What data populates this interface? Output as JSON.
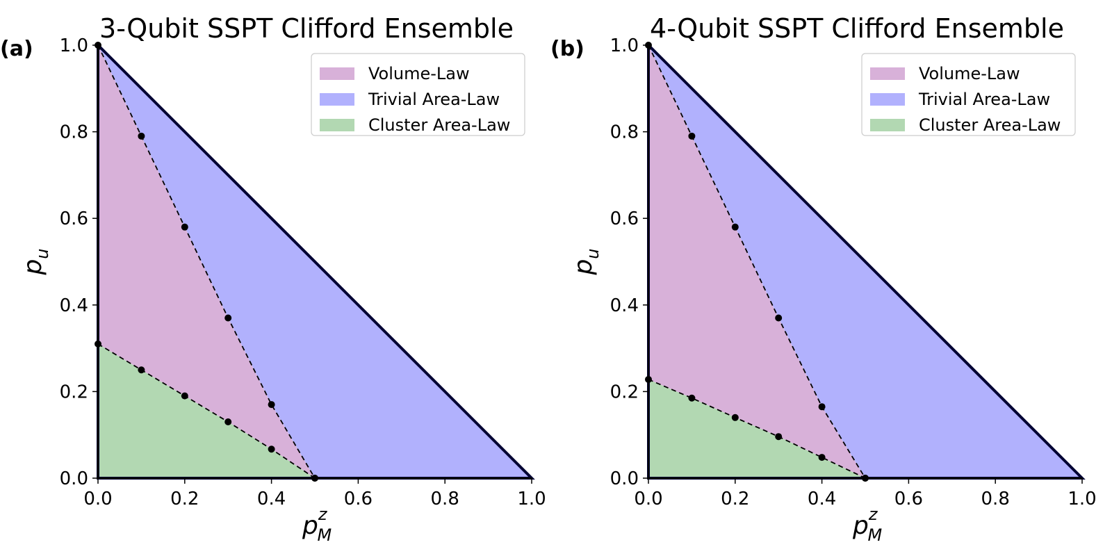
{
  "chart_data": [
    {
      "type": "area",
      "panel_label": "(a)",
      "title": "3-Qubit SSPT Clifford Ensemble",
      "xlabel": {
        "main": "p",
        "sub": "M",
        "sup": "z"
      },
      "ylabel": {
        "main": "p",
        "sub": "u"
      },
      "xlim": [
        0,
        1
      ],
      "ylim": [
        0,
        1
      ],
      "xticks": [
        "0.0",
        "0.2",
        "0.4",
        "0.6",
        "0.8",
        "1.0"
      ],
      "yticks": [
        "0.0",
        "0.2",
        "0.4",
        "0.6",
        "0.8",
        "1.0"
      ],
      "legend_position": "top-right",
      "legend": [
        "Volume-Law",
        "Trivial Area-Law",
        "Cluster Area-Law"
      ],
      "colors": {
        "volume": "#d8b1d9",
        "trivial": "#b1b1fd",
        "cluster": "#b2d8b2",
        "boundary": "#000033"
      },
      "transition_upper": [
        [
          0.0,
          1.0
        ],
        [
          0.1,
          0.79
        ],
        [
          0.2,
          0.58
        ],
        [
          0.3,
          0.37
        ],
        [
          0.4,
          0.17
        ],
        [
          0.5,
          0.0
        ]
      ],
      "transition_lower": [
        [
          0.0,
          0.31
        ],
        [
          0.1,
          0.25
        ],
        [
          0.2,
          0.19
        ],
        [
          0.3,
          0.13
        ],
        [
          0.4,
          0.067
        ],
        [
          0.5,
          0.0
        ]
      ]
    },
    {
      "type": "area",
      "panel_label": "(b)",
      "title": "4-Qubit SSPT Clifford Ensemble",
      "xlabel": {
        "main": "p",
        "sub": "M",
        "sup": "z"
      },
      "ylabel": {
        "main": "p",
        "sub": "u"
      },
      "xlim": [
        0,
        1
      ],
      "ylim": [
        0,
        1
      ],
      "xticks": [
        "0.0",
        "0.2",
        "0.4",
        "0.6",
        "0.8",
        "1.0"
      ],
      "yticks": [
        "0.0",
        "0.2",
        "0.4",
        "0.6",
        "0.8",
        "1.0"
      ],
      "legend_position": "top-right",
      "legend": [
        "Volume-Law",
        "Trivial Area-Law",
        "Cluster Area-Law"
      ],
      "colors": {
        "volume": "#d8b1d9",
        "trivial": "#b1b1fd",
        "cluster": "#b2d8b2",
        "boundary": "#000033"
      },
      "transition_upper": [
        [
          0.0,
          1.0
        ],
        [
          0.1,
          0.79
        ],
        [
          0.2,
          0.58
        ],
        [
          0.3,
          0.37
        ],
        [
          0.4,
          0.165
        ],
        [
          0.5,
          0.0
        ]
      ],
      "transition_lower": [
        [
          0.0,
          0.228
        ],
        [
          0.1,
          0.185
        ],
        [
          0.2,
          0.14
        ],
        [
          0.3,
          0.096
        ],
        [
          0.4,
          0.048
        ],
        [
          0.5,
          0.0
        ]
      ]
    }
  ]
}
